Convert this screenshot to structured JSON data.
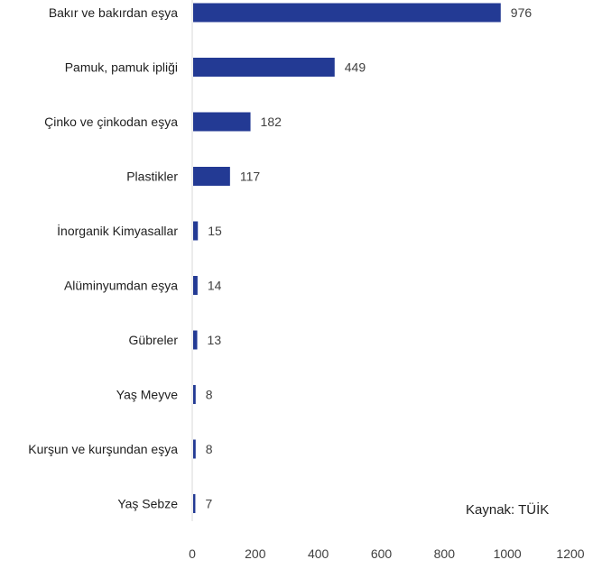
{
  "chart_data": {
    "type": "bar",
    "orientation": "horizontal",
    "categories": [
      "Bakır ve bakırdan eşya",
      "Pamuk, pamuk ipliği",
      "Çinko ve çinkodan eşya",
      "Plastikler",
      "İnorganik Kimyasallar",
      "Alüminyumdan eşya",
      "Gübreler",
      "Yaş Meyve",
      "Kurşun ve kurşundan eşya",
      "Yaş Sebze"
    ],
    "values": [
      976,
      449,
      182,
      117,
      15,
      14,
      13,
      8,
      8,
      7
    ],
    "data_labels": [
      "976",
      "449",
      "182",
      "117",
      "15",
      "14",
      "13",
      "8",
      "8",
      "7"
    ],
    "xlim": [
      0,
      1200
    ],
    "xticks": [
      0,
      200,
      400,
      600,
      800,
      1000,
      1200
    ],
    "xtick_labels": [
      "0",
      "200",
      "400",
      "600",
      "800",
      "1000",
      "1200"
    ],
    "grid": false,
    "bar_color": "#233a94",
    "source_note": "Kaynak: TÜİK"
  }
}
